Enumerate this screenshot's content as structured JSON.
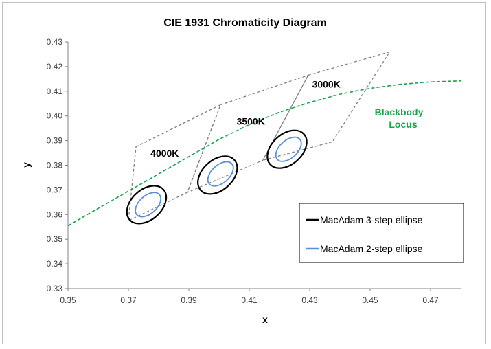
{
  "chart_data": {
    "type": "scatter",
    "title": "CIE 1931 Chromaticity Diagram",
    "xlabel": "x",
    "ylabel": "y",
    "xlim": [
      0.35,
      0.48
    ],
    "ylim": [
      0.33,
      0.43
    ],
    "x_ticks": [
      "0.35",
      "0.37",
      "0.39",
      "0.41",
      "0.43",
      "0.45",
      "0.47"
    ],
    "y_ticks": [
      "0.33",
      "0.34",
      "0.35",
      "0.36",
      "0.37",
      "0.38",
      "0.39",
      "0.40",
      "0.41",
      "0.42",
      "0.43"
    ],
    "grid": false,
    "blackbody_locus": {
      "label_line1": "Blackbody",
      "label_line2": "Locus",
      "color": "#1aa34a",
      "points": [
        [
          0.35,
          0.3555
        ],
        [
          0.36,
          0.3625
        ],
        [
          0.37,
          0.3695
        ],
        [
          0.38,
          0.3765
        ],
        [
          0.39,
          0.3835
        ],
        [
          0.4,
          0.3905
        ],
        [
          0.41,
          0.3965
        ],
        [
          0.42,
          0.4015
        ],
        [
          0.43,
          0.4055
        ],
        [
          0.44,
          0.4088
        ],
        [
          0.45,
          0.4112
        ],
        [
          0.46,
          0.4128
        ],
        [
          0.47,
          0.4138
        ],
        [
          0.48,
          0.4142
        ]
      ]
    },
    "cct_quadrangles": [
      {
        "label": "4000K",
        "label_at": [
          0.382,
          0.3835
        ],
        "points": [
          [
            0.3725,
            0.3875
          ],
          [
            0.4005,
            0.4045
          ],
          [
            0.3895,
            0.369
          ],
          [
            0.37,
            0.3575
          ]
        ]
      },
      {
        "label": "3500K",
        "label_at": [
          0.4105,
          0.3965
        ],
        "points": [
          [
            0.4005,
            0.4045
          ],
          [
            0.4295,
            0.4165
          ],
          [
            0.4145,
            0.382
          ],
          [
            0.3895,
            0.369
          ]
        ]
      },
      {
        "label": "3000K",
        "label_at": [
          0.4355,
          0.4115
        ],
        "points": [
          [
            0.4295,
            0.4165
          ],
          [
            0.4565,
            0.426
          ],
          [
            0.4375,
            0.3895
          ],
          [
            0.4145,
            0.382
          ]
        ]
      }
    ],
    "ellipses": [
      {
        "center": [
          0.376,
          0.364
        ],
        "series": "3-step"
      },
      {
        "center": [
          0.3995,
          0.376
        ],
        "series": "3-step"
      },
      {
        "center": [
          0.4225,
          0.3865
        ],
        "series": "3-step"
      },
      {
        "center": [
          0.3765,
          0.364
        ],
        "series": "2-step"
      },
      {
        "center": [
          0.4005,
          0.3765
        ],
        "series": "2-step"
      },
      {
        "center": [
          0.423,
          0.3865
        ],
        "series": "2-step"
      }
    ],
    "legend": {
      "placement": "bottom-right",
      "entries": [
        {
          "name": "MacAdam 3-step ellipse",
          "color": "#000000"
        },
        {
          "name": "MacAdam 2-step ellipse",
          "color": "#5b8fd6"
        }
      ]
    },
    "colors": {
      "quadrangle": "#7f7f7f",
      "ellipse_3step": "#000000",
      "ellipse_2step": "#5b8fd6",
      "axis": "#808080"
    }
  }
}
